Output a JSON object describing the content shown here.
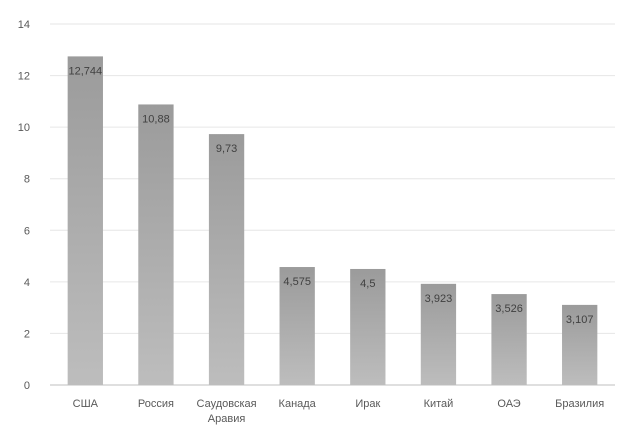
{
  "chart_data": {
    "type": "bar",
    "categories": [
      "США",
      "Россия",
      "Саудовская Аравия",
      "Канада",
      "Ирак",
      "Китай",
      "ОАЭ",
      "Бразилия"
    ],
    "category_label_lines": [
      [
        "США"
      ],
      [
        "Россия"
      ],
      [
        "Саудовская",
        "Аравия"
      ],
      [
        "Канада"
      ],
      [
        "Ирак"
      ],
      [
        "Китай"
      ],
      [
        "ОАЭ"
      ],
      [
        "Бразилия"
      ]
    ],
    "values": [
      12.744,
      10.88,
      9.73,
      4.575,
      4.5,
      3.923,
      3.526,
      3.107
    ],
    "data_labels": [
      "12,744",
      "10,88",
      "9,73",
      "4,575",
      "4,5",
      "3,923",
      "3,526",
      "3,107"
    ],
    "title": "",
    "xlabel": "",
    "ylabel": "",
    "ylim": [
      0,
      14
    ],
    "yticks": [
      0,
      2,
      4,
      6,
      8,
      10,
      12,
      14
    ],
    "grid": true,
    "legend": "none",
    "colors": {
      "bar_top": "#9b9b9b",
      "bar_bottom": "#bdbdbd",
      "grid": "#e6e6e6",
      "axis": "#bfbfbf"
    }
  }
}
